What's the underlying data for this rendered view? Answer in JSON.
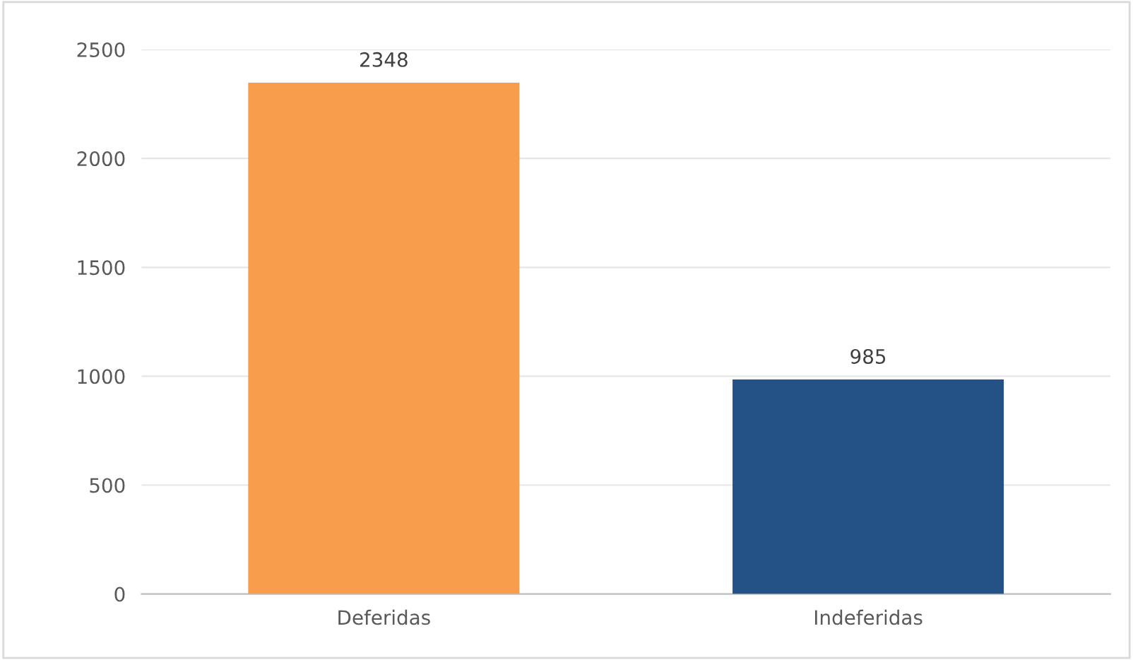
{
  "chart_data": {
    "type": "bar",
    "categories": [
      "Deferidas",
      "Indeferidas"
    ],
    "values": [
      2348,
      985
    ],
    "colors": [
      "#f79d4c",
      "#255286"
    ],
    "ylim": [
      0,
      2500
    ],
    "yticks": [
      0,
      500,
      1000,
      1500,
      2000,
      2500
    ],
    "grid": "y",
    "data_labels": true
  }
}
